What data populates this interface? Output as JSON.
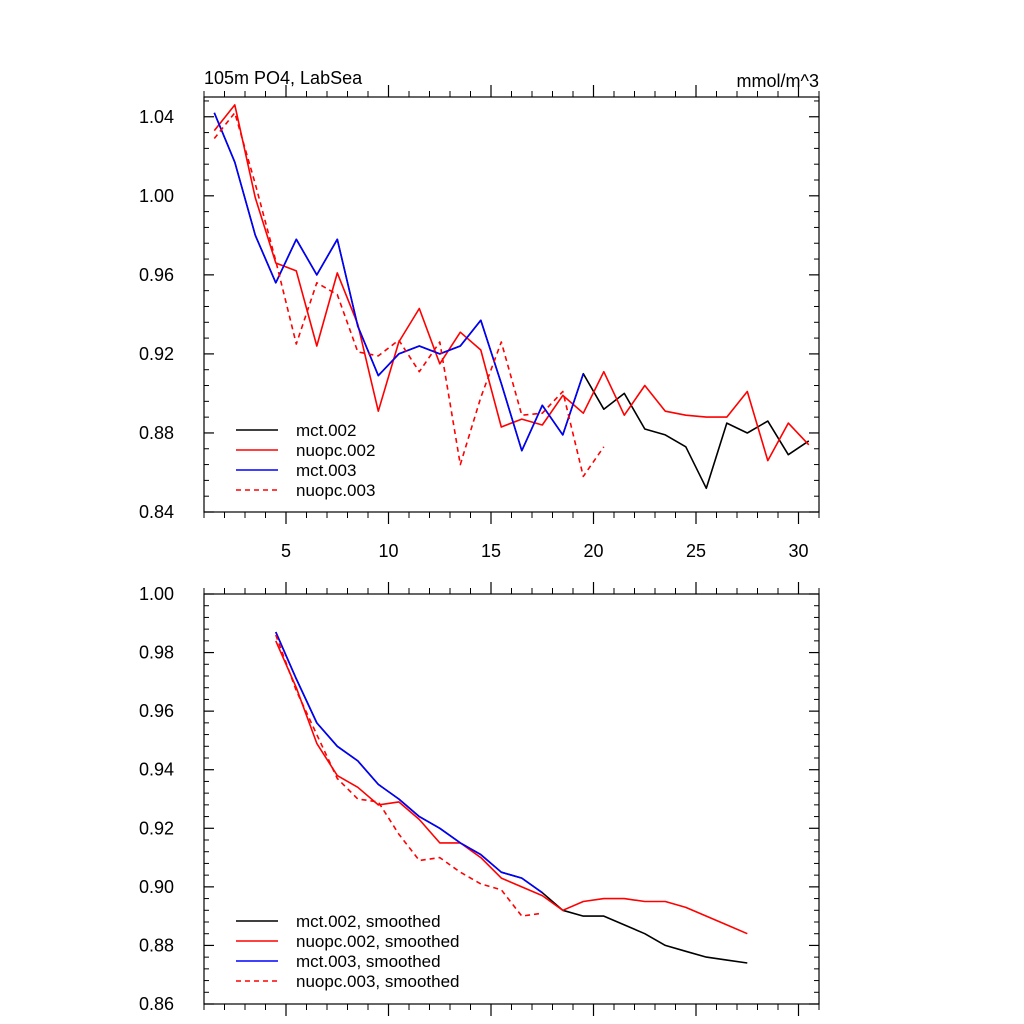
{
  "chart_data": [
    {
      "type": "line",
      "title": "105m PO4, LabSea",
      "units": "mmol/m^3",
      "xlim": [
        1,
        31
      ],
      "ylim": [
        0.84,
        1.05
      ],
      "xticks": [
        5,
        10,
        15,
        20,
        25,
        30
      ],
      "xtick_labels": [
        "5",
        "10",
        "15",
        "20",
        "25",
        "30"
      ],
      "yticks": [
        0.84,
        0.88,
        0.92,
        0.96,
        1.0,
        1.04
      ],
      "ytick_labels": [
        "0.84",
        "0.88",
        "0.92",
        "0.96",
        "1.00",
        "1.04"
      ],
      "legend_position": "bottom-left",
      "series": [
        {
          "name": "mct.002",
          "color": "#000000",
          "dash": "solid",
          "x": [
            1.5,
            2.5,
            3.5,
            4.5,
            5.5,
            6.5,
            7.5,
            8.5,
            9.5,
            10.5,
            11.5,
            12.5,
            13.5,
            14.5,
            15.5,
            16.5,
            17.5,
            18.5,
            19.5,
            20.5,
            21.5,
            22.5,
            23.5,
            24.5,
            25.5,
            26.5,
            27.5,
            28.5,
            29.5,
            30.5
          ],
          "y": [
            1.042,
            1.017,
            0.98,
            0.956,
            0.978,
            0.96,
            0.978,
            0.934,
            0.909,
            0.92,
            0.924,
            0.92,
            0.924,
            0.937,
            0.905,
            0.871,
            0.894,
            0.879,
            0.91,
            0.892,
            0.9,
            0.882,
            0.879,
            0.873,
            0.852,
            0.885,
            0.88,
            0.886,
            0.869,
            0.876
          ]
        },
        {
          "name": "nuopc.002",
          "color": "#ff0000",
          "dash": "solid",
          "x": [
            1.5,
            2.5,
            3.5,
            4.5,
            5.5,
            6.5,
            7.5,
            8.5,
            9.5,
            10.5,
            11.5,
            12.5,
            13.5,
            14.5,
            15.5,
            16.5,
            17.5,
            18.5,
            19.5,
            20.5,
            21.5,
            22.5,
            23.5,
            24.5,
            25.5,
            26.5,
            27.5,
            28.5,
            29.5,
            30.5
          ],
          "y": [
            1.033,
            1.046,
            0.999,
            0.966,
            0.962,
            0.924,
            0.961,
            0.935,
            0.891,
            0.926,
            0.943,
            0.915,
            0.931,
            0.922,
            0.883,
            0.887,
            0.884,
            0.899,
            0.89,
            0.911,
            0.889,
            0.904,
            0.891,
            0.889,
            0.888,
            0.888,
            0.901,
            0.866,
            0.885,
            0.874
          ]
        },
        {
          "name": "mct.003",
          "color": "#0000ff",
          "dash": "solid",
          "x": [
            1.5,
            2.5,
            3.5,
            4.5,
            5.5,
            6.5,
            7.5,
            8.5,
            9.5,
            10.5,
            11.5,
            12.5,
            13.5,
            14.5,
            15.5,
            16.5,
            17.5,
            18.5,
            19.5
          ],
          "y": [
            1.042,
            1.017,
            0.98,
            0.956,
            0.978,
            0.96,
            0.978,
            0.934,
            0.909,
            0.92,
            0.924,
            0.92,
            0.924,
            0.937,
            0.905,
            0.871,
            0.894,
            0.879,
            0.91
          ]
        },
        {
          "name": "nuopc.003",
          "color": "#ff0000",
          "dash": "dashed",
          "x": [
            1.5,
            2.5,
            3.5,
            4.5,
            5.5,
            6.5,
            7.5,
            8.5,
            9.5,
            10.5,
            11.5,
            12.5,
            13.5,
            14.5,
            15.5,
            16.5,
            17.5,
            18.5,
            19.5,
            20.5
          ],
          "y": [
            1.029,
            1.042,
            1.006,
            0.967,
            0.925,
            0.956,
            0.95,
            0.921,
            0.919,
            0.927,
            0.911,
            0.926,
            0.864,
            0.898,
            0.926,
            0.889,
            0.89,
            0.901,
            0.858,
            0.873
          ]
        }
      ]
    },
    {
      "type": "line",
      "xlim": [
        1,
        31
      ],
      "ylim": [
        0.86,
        1.0
      ],
      "xticks": [
        5,
        10,
        15,
        20,
        25,
        30
      ],
      "yticks": [
        0.86,
        0.88,
        0.9,
        0.92,
        0.94,
        0.96,
        0.98,
        1.0
      ],
      "ytick_labels": [
        "0.86",
        "0.88",
        "0.90",
        "0.92",
        "0.94",
        "0.96",
        "0.98",
        "1.00"
      ],
      "legend_position": "bottom-left",
      "series": [
        {
          "name": "mct.002, smoothed",
          "color": "#000000",
          "dash": "solid",
          "x": [
            4.5,
            5.5,
            6.5,
            7.5,
            8.5,
            9.5,
            10.5,
            11.5,
            12.5,
            13.5,
            14.5,
            15.5,
            16.5,
            17.5,
            18.5,
            19.5,
            20.5,
            21.5,
            22.5,
            23.5,
            24.5,
            25.5,
            26.5,
            27.5
          ],
          "y": [
            0.987,
            0.971,
            0.956,
            0.948,
            0.943,
            0.935,
            0.93,
            0.924,
            0.92,
            0.915,
            0.911,
            0.905,
            0.903,
            0.898,
            0.892,
            0.89,
            0.89,
            0.887,
            0.884,
            0.88,
            0.878,
            0.876,
            0.875,
            0.874
          ]
        },
        {
          "name": "nuopc.002, smoothed",
          "color": "#ff0000",
          "dash": "solid",
          "x": [
            4.5,
            5.5,
            6.5,
            7.5,
            8.5,
            9.5,
            10.5,
            11.5,
            12.5,
            13.5,
            14.5,
            15.5,
            16.5,
            17.5,
            18.5,
            19.5,
            20.5,
            21.5,
            22.5,
            23.5,
            24.5,
            25.5,
            26.5,
            27.5
          ],
          "y": [
            0.984,
            0.968,
            0.949,
            0.938,
            0.934,
            0.928,
            0.929,
            0.923,
            0.915,
            0.915,
            0.91,
            0.903,
            0.9,
            0.897,
            0.892,
            0.895,
            0.896,
            0.896,
            0.895,
            0.895,
            0.893,
            0.89,
            0.887,
            0.884
          ]
        },
        {
          "name": "mct.003, smoothed",
          "color": "#0000ff",
          "dash": "solid",
          "x": [
            4.5,
            5.5,
            6.5,
            7.5,
            8.5,
            9.5,
            10.5,
            11.5,
            12.5,
            13.5,
            14.5,
            15.5,
            16.5,
            17.5
          ],
          "y": [
            0.987,
            0.971,
            0.956,
            0.948,
            0.943,
            0.935,
            0.93,
            0.924,
            0.92,
            0.915,
            0.911,
            0.905,
            0.903,
            0.898
          ]
        },
        {
          "name": "nuopc.003, smoothed",
          "color": "#ff0000",
          "dash": "dashed",
          "x": [
            4.5,
            5.5,
            6.5,
            7.5,
            8.5,
            9.5,
            10.5,
            11.5,
            12.5,
            13.5,
            14.5,
            15.5,
            16.5,
            17.5
          ],
          "y": [
            0.986,
            0.967,
            0.952,
            0.937,
            0.93,
            0.929,
            0.918,
            0.909,
            0.91,
            0.905,
            0.901,
            0.899,
            0.89,
            0.891
          ]
        }
      ]
    }
  ]
}
